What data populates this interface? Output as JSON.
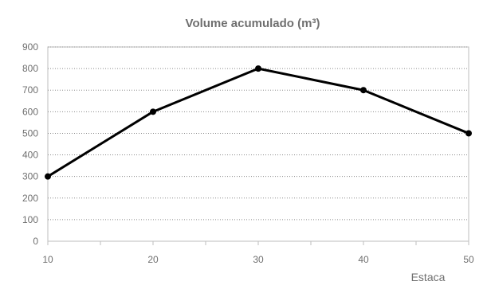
{
  "chart_data": {
    "type": "line",
    "title": "Volume acumulado (m³)",
    "xlabel": "Estaca",
    "ylabel": "",
    "x": [
      10,
      20,
      30,
      40,
      50
    ],
    "series": [
      {
        "values": [
          300,
          600,
          800,
          700,
          500
        ]
      }
    ],
    "xlim": [
      10,
      50
    ],
    "ylim": [
      0,
      900
    ],
    "xticks": [
      10,
      20,
      30,
      40,
      50
    ],
    "yticks": [
      0,
      100,
      200,
      300,
      400,
      500,
      600,
      700,
      800,
      900
    ],
    "grid": "horizontal",
    "legend": "none"
  },
  "colors": {
    "line": "#000000",
    "text": "#6f6f6f",
    "frame": "#bdbdbd",
    "grid": "#8a8a8a",
    "background": "#ffffff"
  }
}
